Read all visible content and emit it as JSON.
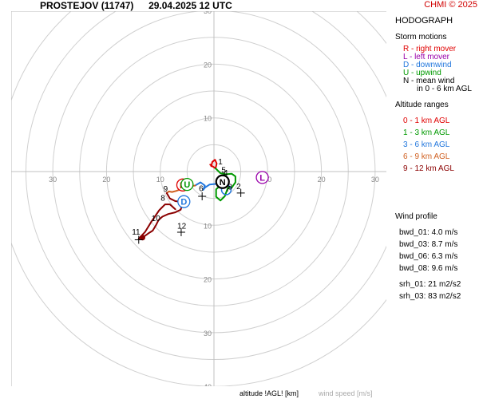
{
  "header": {
    "station": "PROSTEJOV (11747)",
    "datetime": "29.04.2025 12 UTC",
    "copyright": "CHMI © 2025"
  },
  "panel": {
    "title": "HODOGRAPH",
    "storm_motions_title": "Storm motions",
    "storm_motions": [
      {
        "label": "R - right mover",
        "color": "#e00000"
      },
      {
        "label": "L - left mover",
        "color": "#9900aa"
      },
      {
        "label": "D - downwind",
        "color": "#2277dd"
      },
      {
        "label": "U - upwind",
        "color": "#009900"
      },
      {
        "label": "N - mean wind",
        "color": "#000000"
      }
    ],
    "mean_wind_note": "in 0 - 6 km AGL",
    "altitude_ranges_title": "Altitude ranges",
    "altitude_ranges": [
      {
        "label": "0 - 1 km AGL",
        "color": "#e00000"
      },
      {
        "label": "1 - 3 km AGL",
        "color": "#009900"
      },
      {
        "label": "3 - 6 km AGL",
        "color": "#2277dd"
      },
      {
        "label": "6 - 9 km AGL",
        "color": "#d06020"
      },
      {
        "label": "9 - 12 km AGL",
        "color": "#8b0000"
      }
    ],
    "wind_profile_title": "Wind profile",
    "wind_profile": [
      "bwd_01: 4.0 m/s",
      "bwd_03: 8.7 m/s",
      "bwd_06: 6.3 m/s",
      "bwd_08: 9.6 m/s",
      "srh_01: 21 m2/s2",
      "srh_03: 83 m2/s2"
    ]
  },
  "footer": {
    "altitude_label": "altitude !AGL! [km]",
    "speed_label": "wind speed [m/s]"
  },
  "chart_data": {
    "type": "hodograph",
    "rings": [
      5,
      10,
      15,
      20,
      25,
      30,
      35,
      40
    ],
    "ring_labels": [
      10,
      20,
      30
    ],
    "axis_tick_labels": [
      "30",
      "20",
      "10",
      "10",
      "20",
      "30",
      "10",
      "20",
      "30",
      "10",
      "20",
      "30",
      "40"
    ],
    "units": "m/s",
    "hodograph_segments": [
      {
        "range": "0-1 km",
        "color": "#e00000",
        "points": [
          [
            -0.5,
            1.0
          ],
          [
            -0.3,
            1.8
          ],
          [
            0.2,
            2.2
          ],
          [
            0.5,
            1.5
          ],
          [
            0.3,
            0.6
          ],
          [
            -0.3,
            1.0
          ],
          [
            -0.7,
            1.3
          ]
        ]
      },
      {
        "range": "1-3 km",
        "color": "#009900",
        "points": [
          [
            0.3,
            0.6
          ],
          [
            1.2,
            -0.3
          ],
          [
            2.2,
            -0.5
          ],
          [
            3.3,
            -0.4
          ],
          [
            4.0,
            -0.9
          ],
          [
            4.0,
            -2.0
          ],
          [
            3.3,
            -3.0
          ],
          [
            2.6,
            -3.0
          ],
          [
            2.0,
            -4.6
          ],
          [
            1.2,
            -5.4
          ],
          [
            0.4,
            -4.7
          ],
          [
            0.4,
            -3.3
          ],
          [
            1.3,
            -2.5
          ],
          [
            2.2,
            -2.5
          ]
        ]
      },
      {
        "range": "3-6 km",
        "color": "#2277dd",
        "points": [
          [
            2.2,
            -2.5
          ],
          [
            1.2,
            -2.0
          ],
          [
            0.3,
            -2.3
          ],
          [
            -0.8,
            -2.4
          ],
          [
            -1.7,
            -3.0
          ],
          [
            -2.0,
            -3.4
          ],
          [
            -1.7,
            -2.6
          ],
          [
            -2.5,
            -2.0
          ],
          [
            -3.5,
            -2.6
          ]
        ]
      },
      {
        "range": "6-9 km",
        "color": "#d06020",
        "points": [
          [
            -3.5,
            -2.6
          ],
          [
            -4.2,
            -2.7
          ],
          [
            -5.0,
            -2.8
          ],
          [
            -5.5,
            -2.9
          ],
          [
            -6.2,
            -3.3
          ],
          [
            -7.0,
            -3.6
          ],
          [
            -7.8,
            -3.8
          ],
          [
            -8.4,
            -3.7
          ],
          [
            -8.8,
            -4.0
          ]
        ]
      },
      {
        "range": "9-12 km",
        "color": "#8b0000",
        "points": [
          [
            -8.8,
            -4.0
          ],
          [
            -8.2,
            -5.0
          ],
          [
            -7.2,
            -5.5
          ],
          [
            -6.3,
            -5.6
          ],
          [
            -6.0,
            -6.5
          ],
          [
            -6.2,
            -7.1
          ],
          [
            -7.2,
            -7.6
          ],
          [
            -8.5,
            -7.9
          ],
          [
            -9.6,
            -8.4
          ],
          [
            -10.3,
            -9.0
          ],
          [
            -10.8,
            -10.0
          ],
          [
            -11.4,
            -11.0
          ],
          [
            -12.2,
            -11.5
          ],
          [
            -13.3,
            -12.3
          ],
          [
            -14.0,
            -12.5
          ],
          [
            -12.8,
            -11.2
          ],
          [
            -11.7,
            -9.4
          ],
          [
            -10.2,
            -7.2
          ],
          [
            -9.1,
            -6.1
          ],
          [
            -8.2,
            -6.1
          ],
          [
            -7.2,
            -7.0
          ]
        ]
      }
    ],
    "height_labels": [
      {
        "text": "1",
        "u": 1.2,
        "v": 1.8
      },
      {
        "text": "2",
        "u": 4.6,
        "v": -2.8
      },
      {
        "text": "3",
        "u": 3.0,
        "v": -2.9
      },
      {
        "text": "4",
        "u": 2.2,
        "v": -0.3
      },
      {
        "text": "5",
        "u": 1.8,
        "v": 0.2
      },
      {
        "text": "6",
        "u": -2.4,
        "v": -3.2
      },
      {
        "text": "7",
        "u": 2.6,
        "v": -3.3
      },
      {
        "text": "8",
        "u": -9.5,
        "v": -5.0
      },
      {
        "text": "9",
        "u": -9.0,
        "v": -3.3
      },
      {
        "text": "10",
        "u": -10.8,
        "v": -8.8
      },
      {
        "text": "11",
        "u": -14.5,
        "v": -11.3
      },
      {
        "text": "12",
        "u": -6.0,
        "v": -10.2
      }
    ],
    "crosses": [
      {
        "u": -2.2,
        "v": -4.6
      },
      {
        "u": 5.0,
        "v": -4.0
      },
      {
        "u": -6.1,
        "v": -11.3
      },
      {
        "u": -14.0,
        "v": -12.7
      }
    ],
    "storm_motion_markers": [
      {
        "letter": "R",
        "u": -5.8,
        "v": -2.5,
        "color": "#e00000"
      },
      {
        "letter": "L",
        "u": 9.0,
        "v": -1.1,
        "color": "#9900aa"
      },
      {
        "letter": "D",
        "u": -5.6,
        "v": -5.6,
        "color": "#2277dd"
      },
      {
        "letter": "U",
        "u": -5.0,
        "v": -2.4,
        "color": "#009900"
      },
      {
        "letter": "N",
        "u": 1.6,
        "v": -1.9,
        "color": "#000000"
      }
    ],
    "blue_circle": {
      "u": 2.3,
      "v": -3.4
    }
  }
}
